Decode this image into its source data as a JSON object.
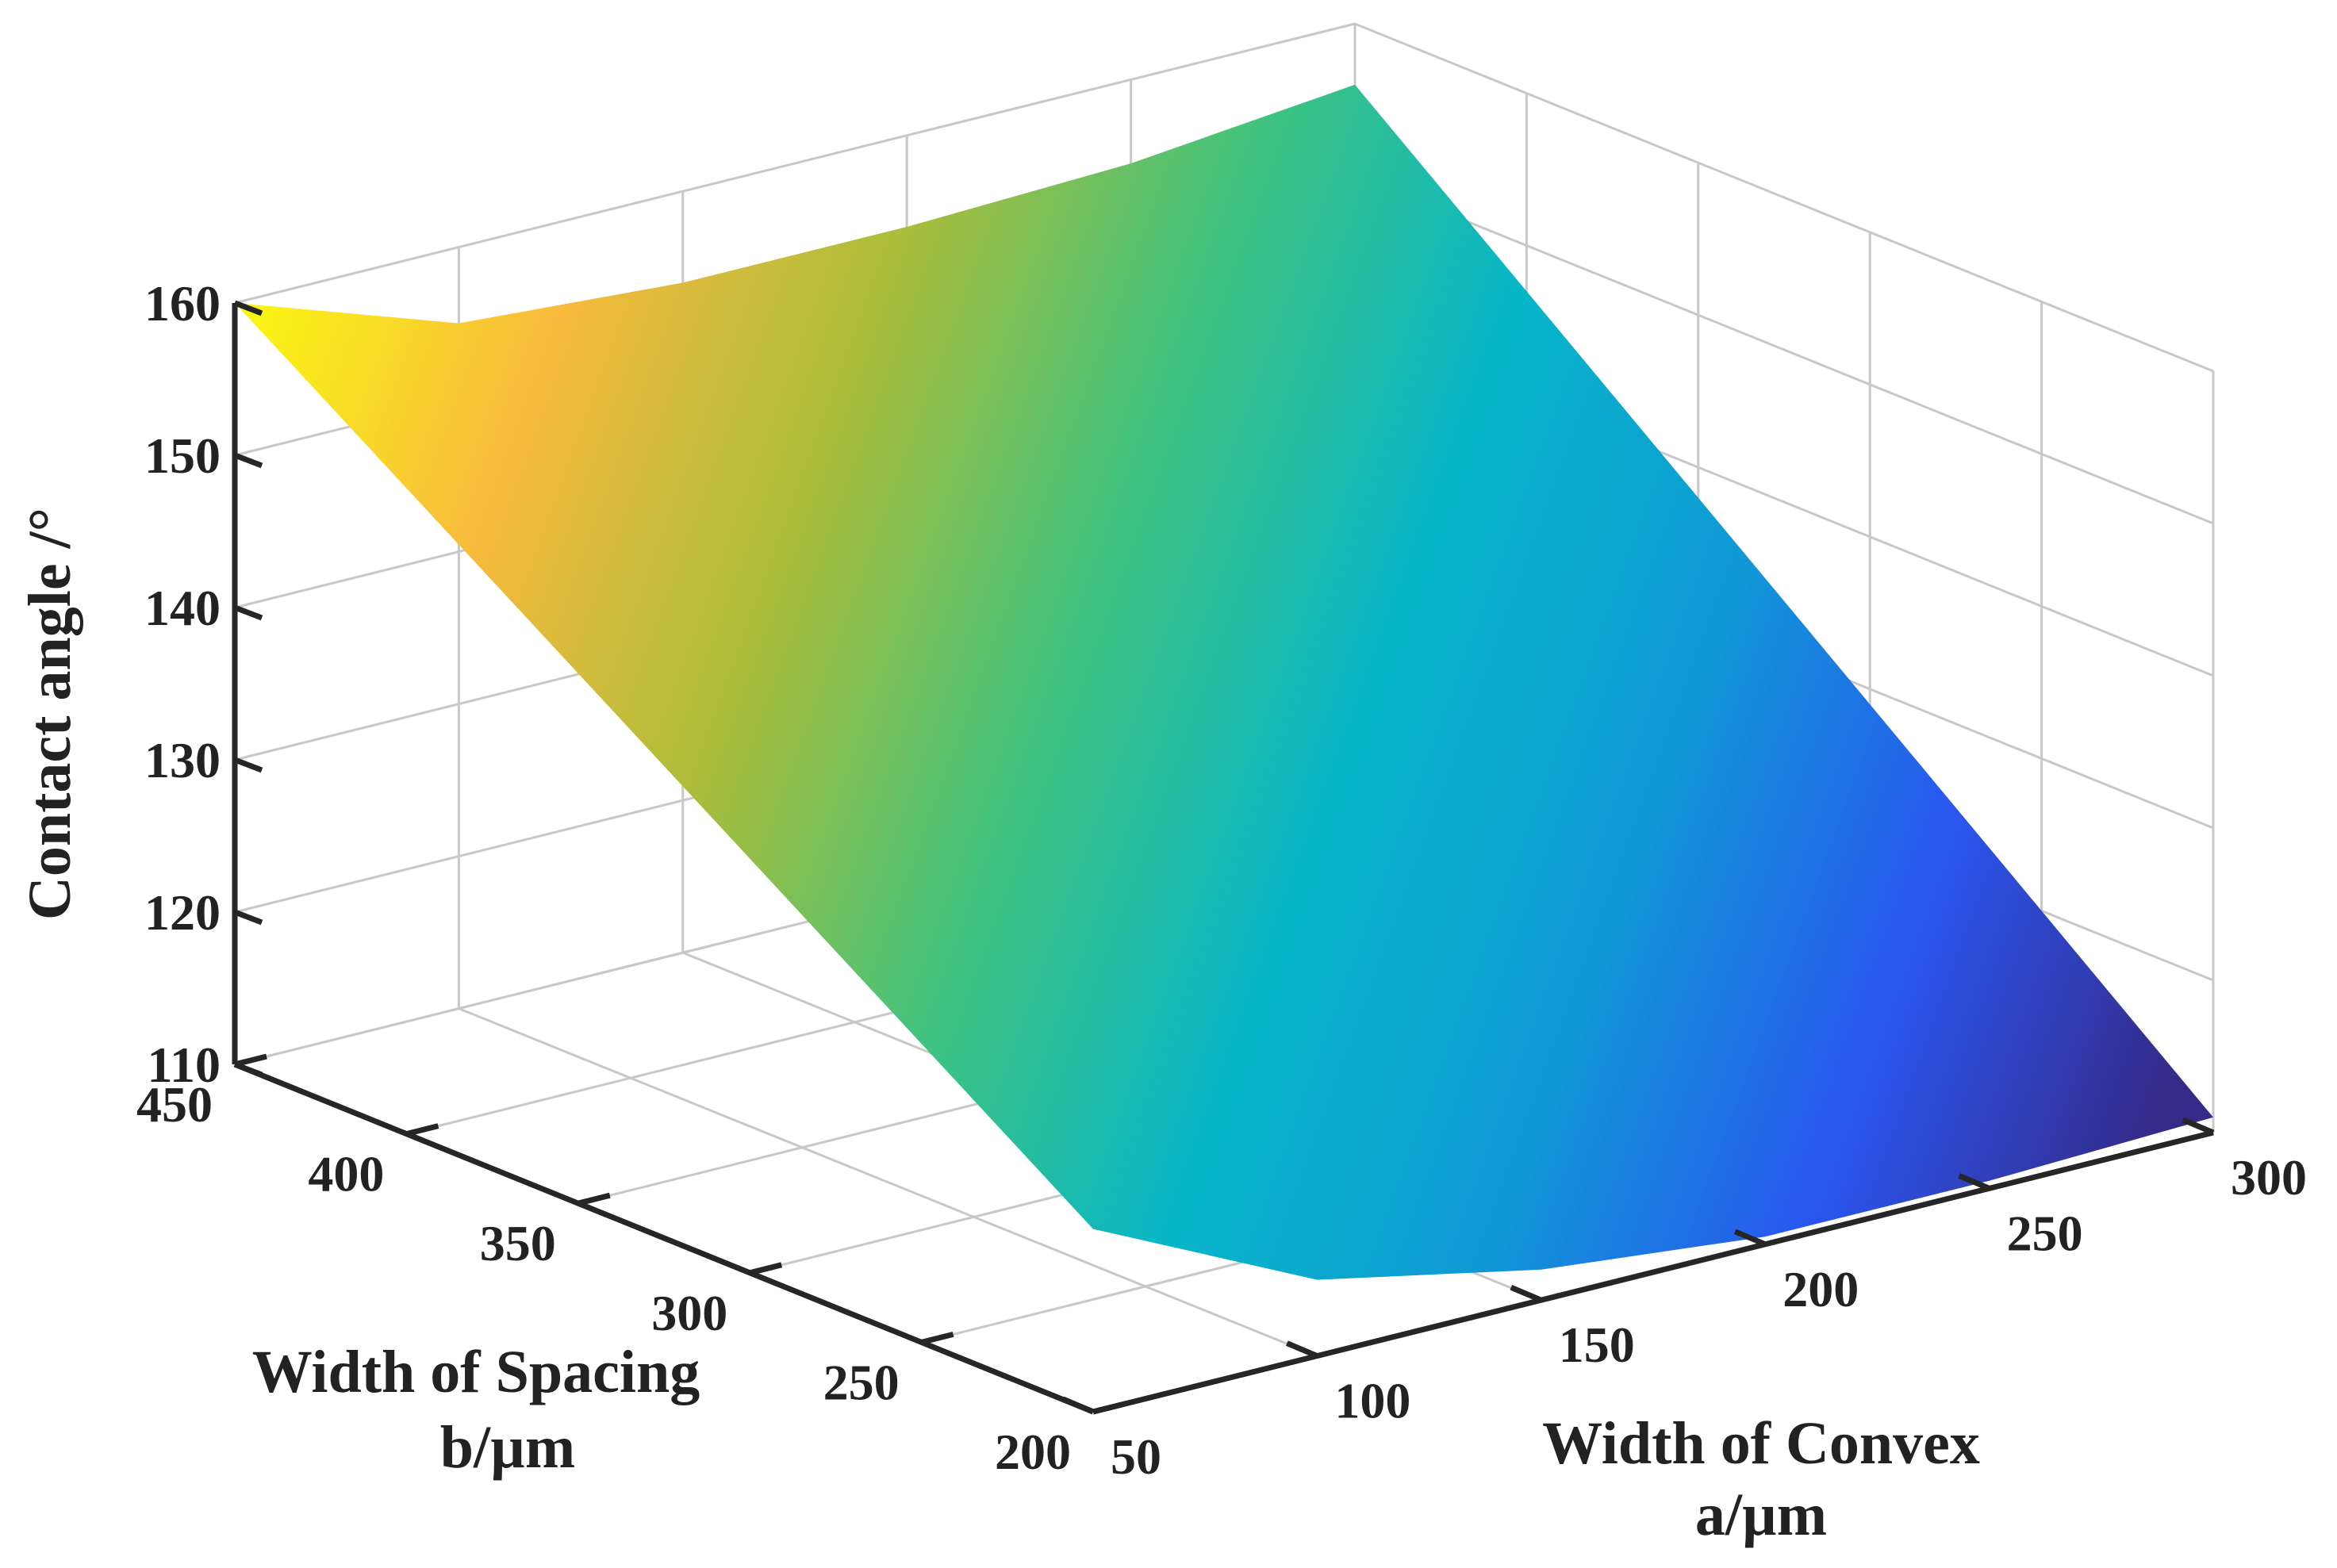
{
  "chart_data": {
    "type": "surface",
    "title": "",
    "xlabel": [
      "Width of Convex",
      "a/µm"
    ],
    "ylabel": [
      "Width of Spacing",
      "b/µm"
    ],
    "zlabel": "Contact angle /°",
    "x_ticks": [
      50,
      100,
      150,
      200,
      250,
      300
    ],
    "x_tick_labels": [
      "50",
      "100",
      "150",
      "200",
      "250",
      "300"
    ],
    "y_ticks": [
      200,
      250,
      300,
      350,
      400,
      450
    ],
    "y_tick_labels": [
      "200",
      "250",
      "300",
      "350",
      "400",
      "450"
    ],
    "z_ticks": [
      110,
      120,
      130,
      140,
      150,
      160
    ],
    "z_tick_labels": [
      "110",
      "120",
      "130",
      "140",
      "150",
      "160"
    ],
    "xlim": [
      50,
      300
    ],
    "ylim": [
      200,
      450
    ],
    "zlim": [
      110,
      160
    ],
    "grid": true,
    "colormap": "parula",
    "colormap_stops": [
      "#352a87",
      "#2a56f0",
      "#0f9ad5",
      "#07b6c8",
      "#3fc37f",
      "#a9bd3a",
      "#f8ba3d",
      "#f9f614"
    ],
    "surface": {
      "edge_back": [
        {
          "a": 50,
          "b": 450,
          "angle": 160
        },
        {
          "a": 100,
          "b": 450,
          "angle": 155
        },
        {
          "a": 150,
          "b": 450,
          "angle": 154
        },
        {
          "a": 200,
          "b": 450,
          "angle": 154
        },
        {
          "a": 250,
          "b": 450,
          "angle": 154.5
        },
        {
          "a": 300,
          "b": 450,
          "angle": 156
        }
      ],
      "edge_front": [
        {
          "a": 50,
          "b": 200,
          "angle": 122
        },
        {
          "a": 100,
          "b": 200,
          "angle": 115
        },
        {
          "a": 150,
          "b": 200,
          "angle": 112
        },
        {
          "a": 200,
          "b": 200,
          "angle": 110.5
        },
        {
          "a": 250,
          "b": 200,
          "angle": 110.5
        },
        {
          "a": 300,
          "b": 200,
          "angle": 111
        }
      ]
    }
  }
}
